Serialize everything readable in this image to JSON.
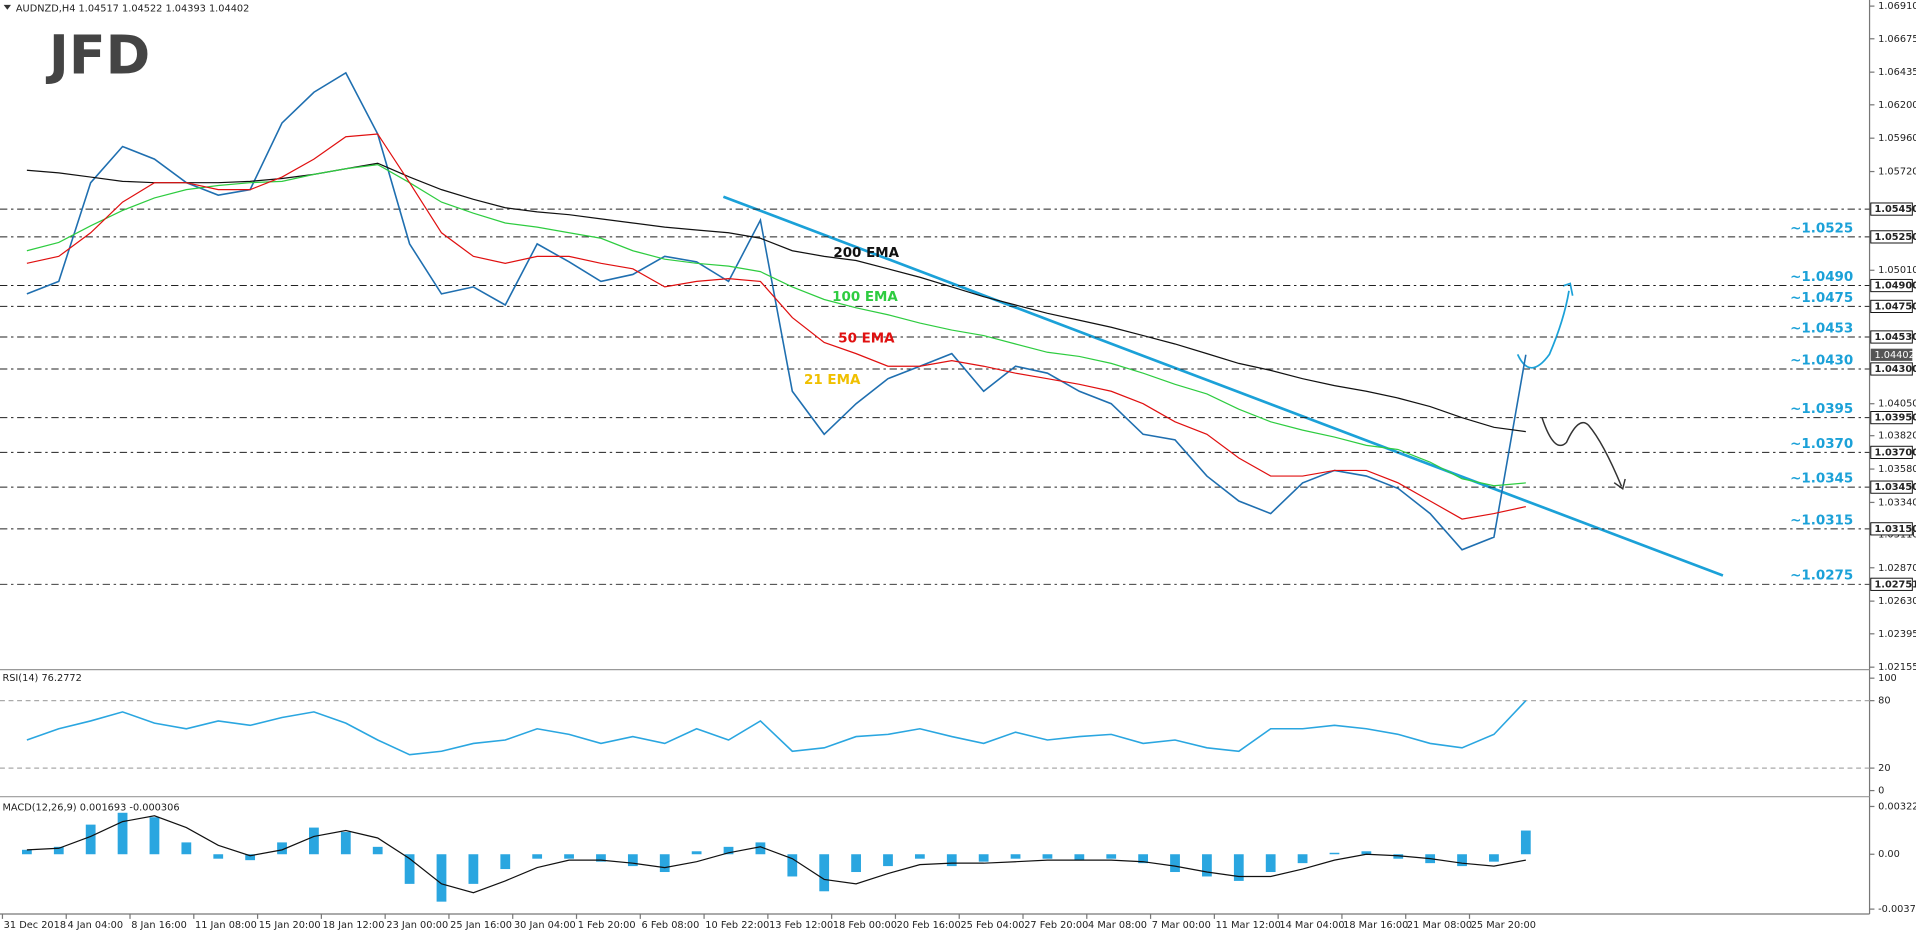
{
  "header": "AUDNZD,H4  1.04517 1.04522 1.04393 1.04402",
  "logo": "JFD",
  "chart_data": [
    {
      "type": "line",
      "ylim": [
        1.02155,
        1.0691
      ],
      "yticks": [
        {
          "value": 1.0691,
          "label": "1.06910"
        },
        1.06675,
        1.06435,
        {
          "value": 1.062,
          "label": "1.06200"
        },
        {
          "value": 1.0596,
          "label": "1.05960"
        },
        {
          "value": 1.0572,
          "label": "1.05720"
        },
        {
          "value": 1.0501,
          "label": "1.05010"
        },
        {
          "value": 1.0405,
          "label": "1.04050"
        },
        {
          "value": 1.0382,
          "label": "1.03820"
        },
        {
          "value": 1.0358,
          "label": "1.03580"
        },
        {
          "value": 1.0334,
          "label": "1.03340"
        },
        {
          "value": 1.0311,
          "label": "1.03110"
        },
        {
          "value": 1.0287,
          "label": "1.02870"
        },
        {
          "value": 1.0263,
          "label": "1.02630"
        },
        1.02395,
        1.02155
      ],
      "series": [
        {
          "color": "#1f6fb0",
          "values": [
            1.0484,
            1.0493,
            1.0564,
            1.059,
            1.0581,
            1.0564,
            1.0555,
            1.0559,
            1.0607,
            1.0629,
            1.0643,
            1.0599,
            1.052,
            1.0484,
            1.0489,
            1.0476,
            1.052,
            1.0507,
            1.0493,
            1.0498,
            1.0511,
            1.0507,
            1.0493,
            1.0537,
            1.0414,
            1.0383,
            1.0405,
            1.0423,
            1.0432,
            1.0441,
            1.0414,
            1.0432,
            1.0427,
            1.0414,
            1.0405,
            1.0383,
            1.0379,
            1.0353,
            1.0335,
            1.0326,
            1.0348,
            1.0357,
            1.0353,
            1.0344,
            1.0326,
            1.03,
            1.0309,
            1.04402
          ]
        },
        {
          "name": "200 EMA",
          "color": "#111111",
          "values": [
            1.0573,
            1.0571,
            1.0568,
            1.0565,
            1.0564,
            1.0564,
            1.0564,
            1.0565,
            1.0567,
            1.057,
            1.0574,
            1.0578,
            1.0568,
            1.0559,
            1.0552,
            1.0546,
            1.0543,
            1.0541,
            1.0538,
            1.0535,
            1.0532,
            1.053,
            1.0528,
            1.0524,
            1.0515,
            1.0511,
            1.0508,
            1.0502,
            1.0496,
            1.0489,
            1.0482,
            1.0476,
            1.047,
            1.0465,
            1.046,
            1.0454,
            1.0448,
            1.0441,
            1.0434,
            1.0429,
            1.0423,
            1.0418,
            1.0414,
            1.0409,
            1.0403,
            1.0395,
            1.0388,
            1.0385
          ]
        },
        {
          "name": "100 EMA",
          "color": "#2ecc40",
          "values": [
            1.0515,
            1.0521,
            1.0533,
            1.0544,
            1.0553,
            1.0559,
            1.0562,
            1.0564,
            1.0565,
            1.057,
            1.0574,
            1.0577,
            1.0564,
            1.055,
            1.0542,
            1.0535,
            1.0532,
            1.0528,
            1.0524,
            1.0515,
            1.0509,
            1.0506,
            1.0504,
            1.05,
            1.0489,
            1.048,
            1.0474,
            1.0469,
            1.0463,
            1.0458,
            1.0454,
            1.0448,
            1.0442,
            1.0439,
            1.0434,
            1.0427,
            1.0419,
            1.0412,
            1.0401,
            1.0392,
            1.0386,
            1.0381,
            1.0375,
            1.0372,
            1.0363,
            1.0351,
            1.0346,
            1.0348
          ]
        },
        {
          "name": "50 EMA",
          "color": "#e01010",
          "values": [
            1.0506,
            1.0511,
            1.0528,
            1.055,
            1.0564,
            1.0564,
            1.0559,
            1.0559,
            1.0568,
            1.0581,
            1.0597,
            1.0599,
            1.0564,
            1.0528,
            1.0511,
            1.0506,
            1.0511,
            1.0511,
            1.0506,
            1.0502,
            1.0489,
            1.0493,
            1.0495,
            1.0493,
            1.0467,
            1.0449,
            1.0441,
            1.0432,
            1.0432,
            1.0436,
            1.0432,
            1.0427,
            1.0423,
            1.0419,
            1.0414,
            1.0405,
            1.0392,
            1.0383,
            1.0366,
            1.0353,
            1.0353,
            1.0357,
            1.0357,
            1.0348,
            1.0335,
            1.0322,
            1.0326,
            1.0331
          ]
        }
      ],
      "annotations": [
        "21 EMA"
      ],
      "levels": [
        {
          "value": 1.0545,
          "label": "1.05450"
        },
        {
          "value": 1.0525,
          "label": "1.05250",
          "note": "~1.0525"
        },
        {
          "value": 1.049,
          "label": "1.04900",
          "note": "~1.0490"
        },
        {
          "value": 1.0475,
          "label": "1.04750",
          "note": "~1.0475"
        },
        {
          "value": 1.0453,
          "label": "1.04530",
          "note": "~1.0453"
        },
        {
          "value": 1.043,
          "label": "1.04300",
          "note": "~1.0430"
        },
        {
          "value": 1.0395,
          "label": "1.03950",
          "note": "~1.0395"
        },
        {
          "value": 1.037,
          "label": "1.03700",
          "note": "~1.0370"
        },
        {
          "value": 1.0345,
          "label": "1.03450",
          "note": "~1.0345"
        },
        {
          "value": 1.0315,
          "label": "1.03150",
          "note": "~1.0315"
        },
        {
          "value": 1.02751,
          "label": "1.02751",
          "note": "~1.0275"
        }
      ],
      "last_price": 1.04402
    },
    {
      "type": "line",
      "title": "RSI(14) 76.2772",
      "ylim": [
        0,
        100
      ],
      "yticks": [
        0,
        20,
        80,
        100
      ],
      "grid": true,
      "series": [
        {
          "color": "#2aa6e0",
          "values": [
            45,
            55,
            62,
            70,
            60,
            55,
            62,
            58,
            65,
            70,
            60,
            45,
            32,
            35,
            42,
            45,
            55,
            50,
            42,
            48,
            42,
            55,
            45,
            62,
            35,
            38,
            48,
            50,
            55,
            48,
            42,
            52,
            45,
            48,
            50,
            42,
            45,
            38,
            35,
            55,
            55,
            58,
            55,
            50,
            42,
            38,
            50,
            80
          ]
        }
      ]
    },
    {
      "type": "macd",
      "title": "MACD(12,26,9) 0.001693 -0.000306",
      "ylim": [
        -0.003704,
        0.003225
      ],
      "yticks": [
        -0.003704,
        {
          "value": 0,
          "label": "0.00"
        },
        0.003225
      ],
      "categories": [
        "31 Dec 2018",
        null,
        "4 Jan 04:00",
        null,
        "8 Jan 16:00",
        null,
        "11 Jan 08:00",
        null,
        "15 Jan 20:00",
        null,
        "18 Jan 12:00",
        null,
        "23 Jan 00:00",
        null,
        "25 Jan 16:00",
        null,
        "30 Jan 04:00",
        null,
        "1 Feb 20:00",
        null,
        "6 Feb 08:00",
        null,
        "10 Feb 22:00",
        null,
        "13 Feb 12:00",
        null,
        "18 Feb 00:00",
        null,
        "20 Feb 16:00",
        null,
        "25 Feb 04:00",
        null,
        "27 Feb 20:00",
        null,
        "4 Mar 08:00",
        null,
        "7 Mar 00:00",
        null,
        "11 Mar 12:00",
        null,
        "14 Mar 04:00",
        null,
        "18 Mar 16:00",
        null,
        "21 Mar 08:00",
        null,
        "25 Mar 20:00",
        null
      ],
      "series": [
        {
          "color": "#2aa6e0",
          "values": [
            0.0003,
            0.0005,
            0.002,
            0.0028,
            0.0025,
            0.0008,
            -0.0003,
            -0.0004,
            0.0008,
            0.0018,
            0.0015,
            0.0005,
            -0.002,
            -0.0032,
            -0.002,
            -0.001,
            -0.0003,
            -0.0003,
            -0.0005,
            -0.0008,
            -0.0012,
            0.0002,
            0.0005,
            0.0008,
            -0.0015,
            -0.0025,
            -0.0012,
            -0.0008,
            -0.0003,
            -0.0008,
            -0.0005,
            -0.0003,
            -0.0003,
            -0.0004,
            -0.0003,
            -0.0006,
            -0.0012,
            -0.0015,
            -0.0018,
            -0.0012,
            -0.0006,
            0.0001,
            0.0002,
            -0.0003,
            -0.0006,
            -0.0008,
            -0.0005,
            0.0016
          ]
        },
        {
          "color": "#111111",
          "values": [
            0.0003,
            0.0004,
            0.0012,
            0.0022,
            0.0026,
            0.0018,
            0.0006,
            -0.0001,
            0.0003,
            0.0012,
            0.0016,
            0.0011,
            -0.0003,
            -0.002,
            -0.0026,
            -0.0018,
            -0.0009,
            -0.0004,
            -0.0004,
            -0.0006,
            -0.0009,
            -0.0005,
            0.0001,
            0.0005,
            -0.0003,
            -0.0017,
            -0.002,
            -0.0013,
            -0.0007,
            -0.0006,
            -0.0006,
            -0.0005,
            -0.0004,
            -0.0004,
            -0.0004,
            -0.0005,
            -0.0008,
            -0.0012,
            -0.0015,
            -0.0015,
            -0.001,
            -0.0004,
            0,
            -0.0001,
            -0.0003,
            -0.0006,
            -0.0008,
            -0.0004
          ]
        }
      ]
    }
  ]
}
